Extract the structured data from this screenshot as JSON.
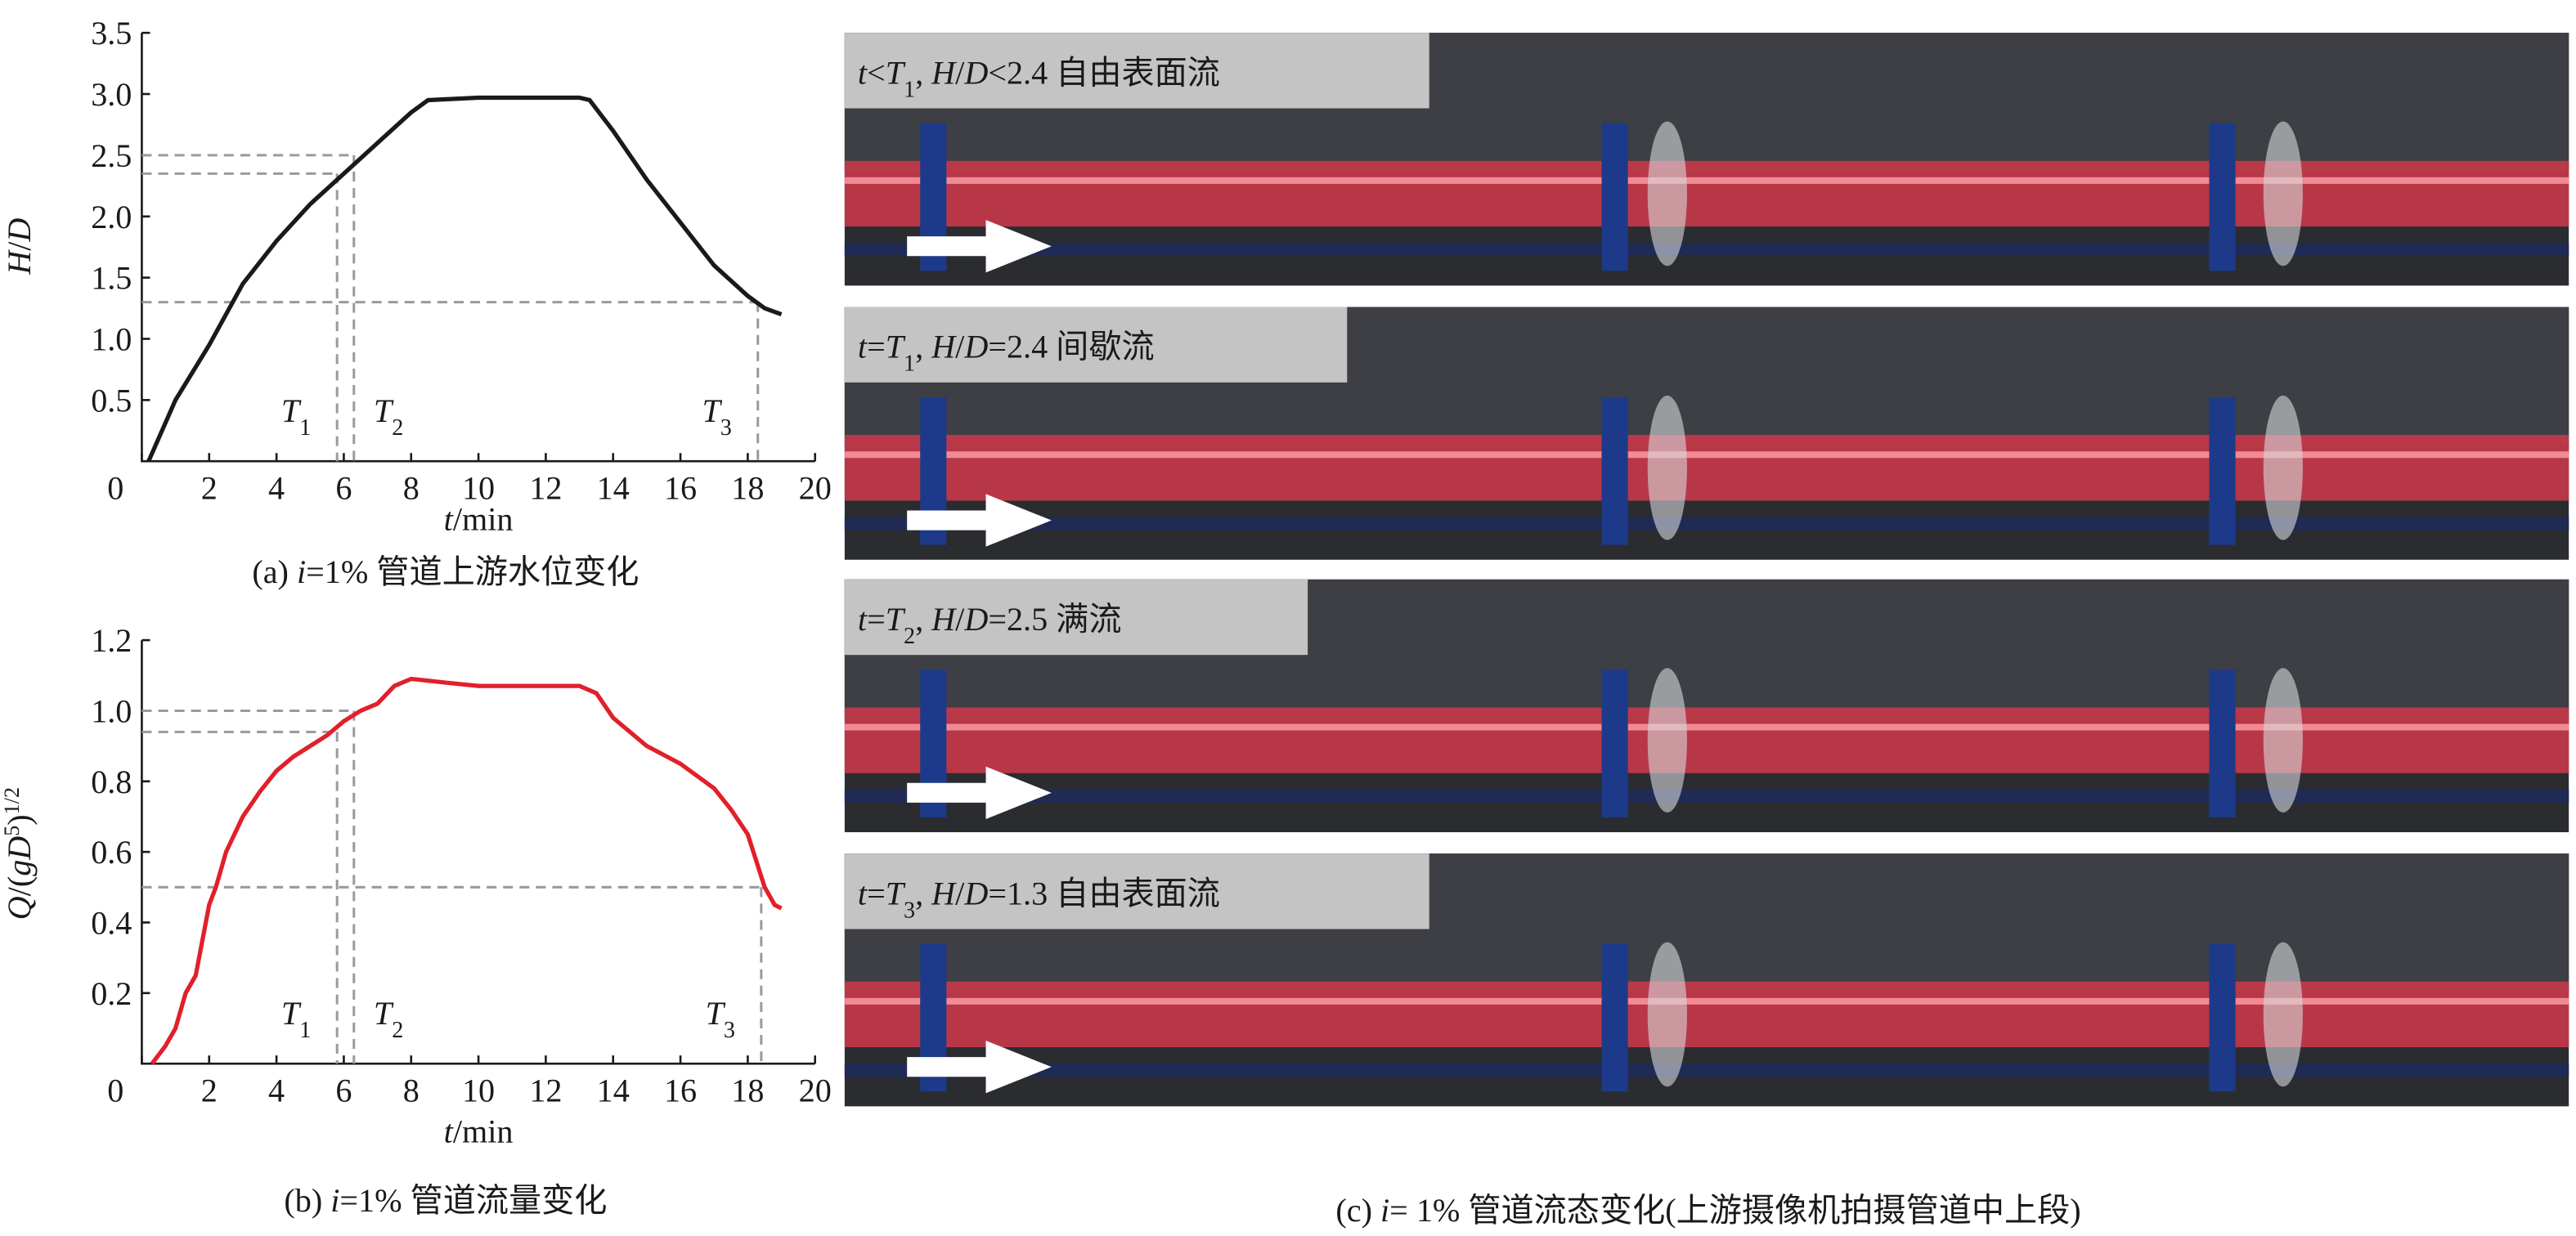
{
  "chart_data": [
    {
      "type": "line",
      "color": "#1a1a1a",
      "ylabel": [
        {
          "text": "H",
          "italic": true
        },
        {
          "text": "/"
        },
        {
          "text": "D",
          "italic": true
        }
      ],
      "xlabel": [
        {
          "text": "t",
          "italic": true
        },
        {
          "text": "/min"
        }
      ],
      "caption": [
        {
          "text": "(a) "
        },
        {
          "text": "i",
          "italic": true
        },
        {
          "text": "=1% 管道上游水位变化"
        }
      ],
      "x": [
        0.2,
        1,
        2,
        3,
        4,
        5,
        6,
        7,
        8,
        8.5,
        10,
        13,
        13.3,
        14,
        15,
        16,
        17,
        18,
        18.5,
        19
      ],
      "values": [
        0,
        0.5,
        0.95,
        1.45,
        1.8,
        2.1,
        2.35,
        2.6,
        2.85,
        2.95,
        2.97,
        2.97,
        2.95,
        2.7,
        2.3,
        1.95,
        1.6,
        1.35,
        1.25,
        1.2
      ],
      "xlim": [
        0,
        20
      ],
      "ylim": [
        0,
        3.5
      ],
      "xticks": [
        0,
        2,
        4,
        6,
        8,
        10,
        12,
        14,
        16,
        18,
        20
      ],
      "yticks": [
        0.5,
        {
          "value": 1,
          "label": "1.0"
        },
        1.5,
        {
          "value": 2,
          "label": "2.0"
        },
        2.5,
        {
          "value": 3,
          "label": "3.0"
        },
        3.5
      ],
      "markers": [
        {
          "label": "T",
          "sub": "1",
          "t": 5.8,
          "level": 2.35
        },
        {
          "label": "T",
          "sub": "2",
          "t": 6.3,
          "level": 2.5
        },
        {
          "label": "T",
          "sub": "3",
          "t": 18.3,
          "level": 1.3
        }
      ]
    },
    {
      "type": "line",
      "color": "#e0202a",
      "ylabel": [
        {
          "text": "Q",
          "italic": true
        },
        {
          "text": "/("
        },
        {
          "text": "gD",
          "italic": true
        },
        {
          "text": "5",
          "sup": true
        },
        {
          "text": ")"
        },
        {
          "text": "1/2",
          "sup": true
        }
      ],
      "xlabel": [
        {
          "text": "t",
          "italic": true
        },
        {
          "text": "/min"
        }
      ],
      "caption": [
        {
          "text": "(b) "
        },
        {
          "text": "i",
          "italic": true
        },
        {
          "text": "=1% 管道流量变化"
        }
      ],
      "x": [
        0.3,
        0.7,
        1,
        1.3,
        1.6,
        1.8,
        2,
        2.2,
        2.5,
        3,
        3.5,
        4,
        4.5,
        5,
        5.5,
        6,
        6.5,
        7,
        7.5,
        8,
        9,
        10,
        12,
        13,
        13.5,
        14,
        15,
        16,
        17,
        17.5,
        18,
        18.5,
        18.8,
        19
      ],
      "values": [
        0,
        0.05,
        0.1,
        0.2,
        0.25,
        0.35,
        0.45,
        0.5,
        0.6,
        0.7,
        0.77,
        0.83,
        0.87,
        0.9,
        0.93,
        0.97,
        1.0,
        1.02,
        1.07,
        1.09,
        1.08,
        1.07,
        1.07,
        1.07,
        1.05,
        0.98,
        0.9,
        0.85,
        0.78,
        0.72,
        0.65,
        0.5,
        0.45,
        0.44
      ],
      "xlim": [
        0,
        20
      ],
      "ylim": [
        0,
        1.2
      ],
      "xticks": [
        0,
        2,
        4,
        6,
        8,
        10,
        12,
        14,
        16,
        18,
        20
      ],
      "yticks": [
        0.2,
        0.4,
        0.6,
        0.8,
        {
          "value": 1,
          "label": "1.0"
        },
        1.2
      ],
      "markers": [
        {
          "label": "T",
          "sub": "1",
          "t": 5.8,
          "level": 0.94
        },
        {
          "label": "T",
          "sub": "2",
          "t": 6.3,
          "level": 1.0
        },
        {
          "label": "T",
          "sub": "3",
          "t": 18.4,
          "level": 0.5
        }
      ]
    }
  ],
  "photos": {
    "panels": [
      [
        {
          "text": "t",
          "italic": true
        },
        {
          "text": "<"
        },
        {
          "text": "T",
          "italic": true
        },
        {
          "text": "1",
          "sub": true
        },
        {
          "text": ", "
        },
        {
          "text": "H",
          "italic": true
        },
        {
          "text": "/"
        },
        {
          "text": "D",
          "italic": true
        },
        {
          "text": "<2.4 自由表面流"
        }
      ],
      [
        {
          "text": "t",
          "italic": true
        },
        {
          "text": "="
        },
        {
          "text": "T",
          "italic": true
        },
        {
          "text": "1",
          "sub": true
        },
        {
          "text": ", "
        },
        {
          "text": "H",
          "italic": true
        },
        {
          "text": "/"
        },
        {
          "text": "D",
          "italic": true
        },
        {
          "text": "=2.4 间歇流"
        }
      ],
      [
        {
          "text": "t",
          "italic": true
        },
        {
          "text": "="
        },
        {
          "text": "T",
          "italic": true
        },
        {
          "text": "2",
          "sub": true
        },
        {
          "text": ", "
        },
        {
          "text": "H",
          "italic": true
        },
        {
          "text": "/"
        },
        {
          "text": "D",
          "italic": true
        },
        {
          "text": "=2.5 满流"
        }
      ],
      [
        {
          "text": "t",
          "italic": true
        },
        {
          "text": "="
        },
        {
          "text": "T",
          "italic": true
        },
        {
          "text": "3",
          "sub": true
        },
        {
          "text": ", "
        },
        {
          "text": "H",
          "italic": true
        },
        {
          "text": "/"
        },
        {
          "text": "D",
          "italic": true
        },
        {
          "text": "=1.3 自由表面流"
        }
      ]
    ],
    "caption": [
      {
        "text": "(c) "
      },
      {
        "text": "i",
        "italic": true
      },
      {
        "text": "= 1% 管道流态变化(上游摄像机拍摄管道中上段)"
      }
    ]
  }
}
